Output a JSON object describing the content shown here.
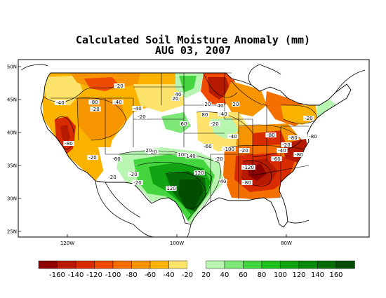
{
  "title": "Calculated Soil Moisture Anomaly (mm)",
  "date": "AUG 03, 2007",
  "lat_ticks": [
    "50N",
    "45N",
    "40N",
    "35N",
    "30N",
    "25N"
  ],
  "lon_ticks": [
    "120W",
    "100W",
    "80W"
  ],
  "legend": {
    "negative_labels": [
      "-160",
      "-140",
      "-120",
      "-100",
      "-80",
      "-60",
      "-40",
      "-20"
    ],
    "positive_labels": [
      "20",
      "40",
      "60",
      "80",
      "100",
      "120",
      "140",
      "160"
    ],
    "colors": [
      "#8b0000",
      "#b61a00",
      "#d92b00",
      "#ef4b00",
      "#f36f00",
      "#f79500",
      "#fbb300",
      "#fde26b",
      "#ffffff",
      "#b8f5b0",
      "#7de877",
      "#45d63f",
      "#21c01f",
      "#12a312",
      "#0a8a0a",
      "#066d06",
      "#034d03"
    ]
  },
  "contour_labels": [
    "-20",
    "-40",
    "-80",
    "-20",
    "-40",
    "-40",
    "-20",
    "-20",
    "-20",
    "40",
    "20",
    "80",
    "60",
    "20",
    "40",
    "20",
    "-40",
    "-20",
    "-80",
    "-60",
    "-100",
    "-20",
    "-80",
    "-20",
    "-40",
    "-80",
    "-60",
    "-120",
    "-80",
    "-20",
    "20",
    "100",
    "140",
    "120",
    "120",
    "40",
    "-20",
    "-80",
    "-20",
    "-60",
    "-20",
    "-40",
    "-80",
    "-20"
  ]
}
